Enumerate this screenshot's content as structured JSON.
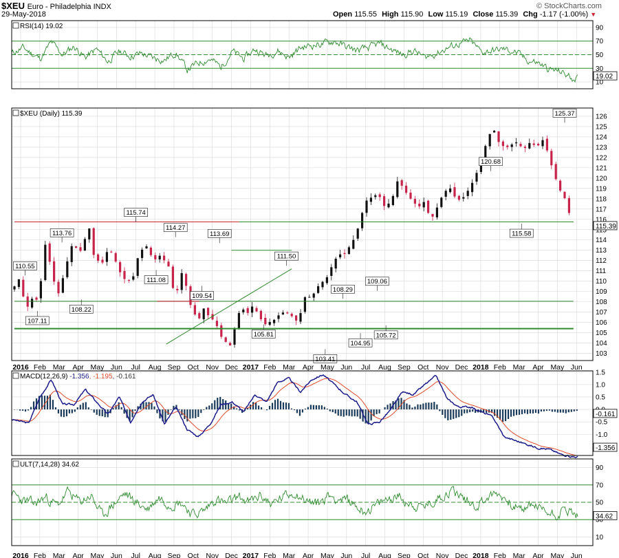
{
  "header": {
    "symbol": "$XEU",
    "name": "Euro - Philadelphia INDX",
    "date": "29-May-2018",
    "open_label": "Open",
    "open": "115.55",
    "high_label": "High",
    "high": "115.90",
    "low_label": "Low",
    "low": "115.19",
    "close_label": "Close",
    "close": "115.39",
    "chg_label": "Chg",
    "chg": "-1.17 (-1.00%)",
    "watermark": "© StockCharts.com"
  },
  "colors": {
    "frame": "#000000",
    "grid": "#d7d7d7",
    "green": "#2e8b2e",
    "red": "#cc2233",
    "macd": "#1a1a8a",
    "signal": "#e04a2a",
    "hist": "#1a3a5a",
    "up": "#111111",
    "down": "#c8234a"
  },
  "months": [
    "2016",
    "Feb",
    "Mar",
    "Apr",
    "May",
    "Jun",
    "Jul",
    "Aug",
    "Sep",
    "Oct",
    "Nov",
    "Dec",
    "2017",
    "Feb",
    "Mar",
    "Apr",
    "May",
    "Jun",
    "Jul",
    "Aug",
    "Sep",
    "Oct",
    "Nov",
    "Dec",
    "2018",
    "Feb",
    "Mar",
    "Apr",
    "May",
    "Jun"
  ],
  "chart_data": [
    {
      "id": "rsi",
      "type": "line",
      "label": "RSI(14) 19.02",
      "current": "19.02",
      "ylim": [
        0,
        100
      ],
      "ticks": [
        "90",
        "70",
        "50",
        "30",
        "10"
      ],
      "tick_values": [
        90,
        70,
        50,
        30,
        10
      ],
      "levels": [
        70,
        50,
        30
      ],
      "anchors": [
        [
          0,
          52
        ],
        [
          2,
          60
        ],
        [
          5,
          44
        ],
        [
          7,
          68
        ],
        [
          9,
          50
        ],
        [
          11,
          62
        ],
        [
          13,
          46
        ],
        [
          15,
          58
        ],
        [
          17,
          40
        ],
        [
          19,
          55
        ],
        [
          21,
          48
        ],
        [
          23,
          52
        ],
        [
          25,
          45
        ],
        [
          27,
          42
        ],
        [
          29,
          53
        ],
        [
          31,
          28
        ],
        [
          33,
          38
        ],
        [
          35,
          44
        ],
        [
          37,
          32
        ],
        [
          39,
          55
        ],
        [
          41,
          44
        ],
        [
          43,
          58
        ],
        [
          45,
          49
        ],
        [
          47,
          56
        ],
        [
          49,
          46
        ],
        [
          51,
          60
        ],
        [
          53,
          64
        ],
        [
          55,
          66
        ],
        [
          57,
          70
        ],
        [
          59,
          62
        ],
        [
          61,
          56
        ],
        [
          63,
          60
        ],
        [
          65,
          66
        ],
        [
          67,
          58
        ],
        [
          69,
          50
        ],
        [
          71,
          56
        ],
        [
          73,
          46
        ],
        [
          75,
          52
        ],
        [
          77,
          60
        ],
        [
          79,
          66
        ],
        [
          81,
          70
        ],
        [
          83,
          54
        ],
        [
          85,
          56
        ],
        [
          87,
          58
        ],
        [
          89,
          54
        ],
        [
          91,
          42
        ],
        [
          93,
          38
        ],
        [
          95,
          28
        ],
        [
          97,
          25
        ],
        [
          99,
          16
        ]
      ]
    },
    {
      "id": "price",
      "type": "candlestick",
      "label": "$XEU (Daily) 115.39",
      "current": "115.39",
      "ylim": [
        102.3,
        126.8
      ],
      "ticks": [
        "126",
        "125",
        "124",
        "123",
        "122",
        "121",
        "120",
        "119",
        "118",
        "117",
        "116",
        "115",
        "114",
        "113",
        "112",
        "111",
        "110",
        "109",
        "108",
        "107",
        "106",
        "105",
        "104",
        "103"
      ],
      "tick_values": [
        126,
        125,
        124,
        123,
        122,
        121,
        120,
        119,
        118,
        117,
        116,
        115,
        114,
        113,
        112,
        111,
        110,
        109,
        108,
        107,
        106,
        105,
        104,
        103
      ],
      "anchors": [
        [
          0,
          109.5
        ],
        [
          1.2,
          110.3
        ],
        [
          2.6,
          107.4
        ],
        [
          4,
          108.4
        ],
        [
          5.4,
          108.2
        ],
        [
          7,
          113.5
        ],
        [
          8.5,
          111
        ],
        [
          9.7,
          108.5
        ],
        [
          11.2,
          110.5
        ],
        [
          13,
          113.5
        ],
        [
          15.3,
          113
        ],
        [
          16.9,
          115.5
        ],
        [
          18,
          112.6
        ],
        [
          19.7,
          111.6
        ],
        [
          21.4,
          113.5
        ],
        [
          23.2,
          111.5
        ],
        [
          24.8,
          110.3
        ],
        [
          26.6,
          109.8
        ],
        [
          28.3,
          112.8
        ],
        [
          29.9,
          113.4
        ],
        [
          31.5,
          112.2
        ],
        [
          33.2,
          112.4
        ],
        [
          35,
          111.5
        ],
        [
          36.5,
          108.3
        ],
        [
          38.2,
          111.3
        ],
        [
          39.7,
          108
        ],
        [
          40.4,
          107.4
        ],
        [
          41.6,
          106.3
        ],
        [
          43,
          107.3
        ],
        [
          44.3,
          106.6
        ],
        [
          46,
          105.6
        ],
        [
          47.4,
          104.3
        ],
        [
          49,
          103.8
        ],
        [
          50.4,
          106
        ],
        [
          51.5,
          107.5
        ],
        [
          52.9,
          107
        ],
        [
          54.3,
          107.8
        ],
        [
          55.6,
          106.8
        ],
        [
          57,
          106
        ],
        [
          58.3,
          106.1
        ],
        [
          59.5,
          106.3
        ],
        [
          61.2,
          107
        ],
        [
          62.5,
          106.8
        ],
        [
          64.5,
          106
        ],
        [
          66,
          108.4
        ],
        [
          67.5,
          108.5
        ],
        [
          69.2,
          109.8
        ],
        [
          70.5,
          110
        ],
        [
          72,
          111.5
        ],
        [
          73.5,
          112.5
        ],
        [
          75,
          112.4
        ],
        [
          76.8,
          113.5
        ],
        [
          78.3,
          115.2
        ],
        [
          79.6,
          117.5
        ],
        [
          81,
          118.2
        ],
        [
          82.6,
          118.6
        ],
        [
          84.2,
          117.3
        ],
        [
          85.8,
          118
        ],
        [
          87.3,
          120
        ],
        [
          88.8,
          118.5
        ],
        [
          90.3,
          118
        ],
        [
          91.8,
          117.2
        ],
        [
          93.2,
          117.8
        ],
        [
          94.7,
          115.9
        ],
        [
          96.2,
          117.3
        ],
        [
          97.8,
          118.6
        ],
        [
          99.2,
          119
        ],
        [
          100.6,
          117.8
        ],
        [
          102.1,
          118
        ],
        [
          103.4,
          119.1
        ],
        [
          104.8,
          120.5
        ],
        [
          106.2,
          122
        ],
        [
          107.4,
          123.6
        ],
        [
          108.6,
          124.8
        ],
        [
          110,
          123.5
        ],
        [
          111.4,
          122.8
        ],
        [
          112.8,
          123.4
        ],
        [
          114.3,
          123.8
        ],
        [
          115.7,
          123
        ],
        [
          117.1,
          123.4
        ],
        [
          118.5,
          122.9
        ],
        [
          119.9,
          123.8
        ],
        [
          121.3,
          122.6
        ],
        [
          122.6,
          120.4
        ],
        [
          124,
          119
        ],
        [
          125.4,
          117.9
        ],
        [
          126.6,
          115.7
        ]
      ],
      "annotations": [
        {
          "idx": 1.2,
          "value": "110.55",
          "pos": "above"
        },
        {
          "idx": 2.6,
          "value": "107.11",
          "pos": "below"
        },
        {
          "idx": 5.4,
          "value": "113.76",
          "pos": "above"
        },
        {
          "idx": 7.6,
          "value": "108.22",
          "pos": "below"
        },
        {
          "idx": 13.8,
          "value": "115.74",
          "pos": "above"
        },
        {
          "idx": 16.1,
          "value": "111.08",
          "pos": "below"
        },
        {
          "idx": 18.3,
          "value": "114.27",
          "pos": "above"
        },
        {
          "idx": 21.3,
          "value": "109.54",
          "pos": "below"
        },
        {
          "idx": 23.3,
          "value": "113.69",
          "pos": "above"
        },
        {
          "idx": 28.3,
          "value": "105.81",
          "pos": "below"
        },
        {
          "idx": 30.9,
          "value": "111.50",
          "pos": "above"
        },
        {
          "idx": 35.3,
          "value": "103.41",
          "pos": "below"
        },
        {
          "idx": 37.3,
          "value": "108.29",
          "pos": "above"
        },
        {
          "idx": 39.3,
          "value": "104.95",
          "pos": "below"
        },
        {
          "idx": 41.2,
          "value": "109.06",
          "pos": "above"
        },
        {
          "idx": 42.2,
          "value": "105.72",
          "pos": "below"
        },
        {
          "idx": 54.1,
          "value": "120.68",
          "pos": "above"
        },
        {
          "idx": 57.6,
          "value": "115.58",
          "pos": "below"
        },
        {
          "idx": 62.5,
          "value": "125.37",
          "pos": "above"
        }
      ],
      "hlines": [
        {
          "value": 115.75,
          "from": 0,
          "to": 127,
          "color": "red"
        },
        {
          "value": 115.75,
          "from": 51,
          "to": 127,
          "color": "green"
        },
        {
          "value": 113.0,
          "from": 49.3,
          "to": 63,
          "color": "green"
        },
        {
          "value": 108.05,
          "from": 0,
          "to": 127,
          "color": "green"
        },
        {
          "value": 108.05,
          "from": 32.4,
          "to": 42,
          "color": "red"
        },
        {
          "value": 105.4,
          "from": 0,
          "to": 127,
          "color": "green",
          "width": 2
        }
      ],
      "trendline": [
        [
          34.5,
          103.9
        ],
        [
          63,
          111.2
        ]
      ]
    },
    {
      "id": "macd",
      "type": "line",
      "label_main": "MACD(12,26,9)",
      "label_macd": "-1.356",
      "label_signal": "-1.195",
      "label_hist": "-0.161",
      "current_macd": "-1.356",
      "current_hist": "-0.161",
      "ylim": [
        -1.85,
        1.55
      ],
      "ticks": [
        "1.5",
        "1.0",
        "0.5",
        "0.0",
        "-0.5",
        "-1.0"
      ],
      "tick_values": [
        1.5,
        1.0,
        0.5,
        0.0,
        -0.5,
        -1.0
      ],
      "macd_anchors": [
        [
          0,
          -0.4
        ],
        [
          3,
          -0.55
        ],
        [
          5,
          0.5
        ],
        [
          7,
          1.2
        ],
        [
          9,
          0.2
        ],
        [
          11,
          0.2
        ],
        [
          13,
          0.8
        ],
        [
          15,
          0.3
        ],
        [
          17,
          -0.2
        ],
        [
          19,
          0.5
        ],
        [
          21,
          -0.5
        ],
        [
          23,
          0.3
        ],
        [
          25,
          0.6
        ],
        [
          27,
          -0.6
        ],
        [
          29,
          0.1
        ],
        [
          31,
          -0.8
        ],
        [
          33,
          -1.1
        ],
        [
          35,
          -0.6
        ],
        [
          37,
          0.2
        ],
        [
          39,
          0.3
        ],
        [
          41,
          -0.1
        ],
        [
          43,
          0.6
        ],
        [
          45,
          0.3
        ],
        [
          47,
          1.1
        ],
        [
          49,
          1.25
        ],
        [
          51,
          0.7
        ],
        [
          53,
          1.2
        ],
        [
          55,
          1.4
        ],
        [
          57,
          1.0
        ],
        [
          59,
          0.6
        ],
        [
          61,
          0.3
        ],
        [
          63,
          -0.6
        ],
        [
          65,
          -0.5
        ],
        [
          67,
          0.0
        ],
        [
          69,
          0.7
        ],
        [
          71,
          0.6
        ],
        [
          73,
          1.0
        ],
        [
          75,
          1.35
        ],
        [
          77,
          0.4
        ],
        [
          79,
          0.1
        ],
        [
          81,
          0.1
        ],
        [
          83,
          -0.1
        ],
        [
          85,
          -0.3
        ],
        [
          87,
          -1.1
        ],
        [
          89,
          -1.25
        ],
        [
          91,
          -1.4
        ],
        [
          93,
          -1.55
        ],
        [
          95,
          -1.6
        ],
        [
          97,
          -1.8
        ],
        [
          99,
          -1.9
        ]
      ],
      "hist_levels": [
        "0.0"
      ]
    },
    {
      "id": "ult",
      "type": "line",
      "label": "ULT(7,14,28) 34.62",
      "current": "34.62",
      "ylim": [
        0,
        100
      ],
      "ticks": [
        "90",
        "70",
        "50",
        "30",
        "10"
      ],
      "tick_values": [
        90,
        70,
        50,
        30,
        10
      ],
      "levels": [
        70,
        50,
        30
      ],
      "anchors": [
        [
          0,
          60
        ],
        [
          2,
          52
        ],
        [
          4,
          48
        ],
        [
          6,
          56
        ],
        [
          8,
          46
        ],
        [
          10,
          62
        ],
        [
          12,
          50
        ],
        [
          14,
          58
        ],
        [
          16,
          34
        ],
        [
          18,
          48
        ],
        [
          20,
          60
        ],
        [
          22,
          50
        ],
        [
          24,
          42
        ],
        [
          26,
          56
        ],
        [
          28,
          48
        ],
        [
          30,
          50
        ],
        [
          32,
          36
        ],
        [
          34,
          40
        ],
        [
          36,
          54
        ],
        [
          38,
          48
        ],
        [
          40,
          56
        ],
        [
          42,
          50
        ],
        [
          44,
          58
        ],
        [
          46,
          48
        ],
        [
          48,
          56
        ],
        [
          50,
          62
        ],
        [
          52,
          52
        ],
        [
          54,
          48
        ],
        [
          56,
          58
        ],
        [
          58,
          54
        ],
        [
          60,
          50
        ],
        [
          62,
          40
        ],
        [
          64,
          44
        ],
        [
          66,
          52
        ],
        [
          68,
          58
        ],
        [
          70,
          50
        ],
        [
          72,
          44
        ],
        [
          74,
          48
        ],
        [
          76,
          58
        ],
        [
          78,
          64
        ],
        [
          80,
          54
        ],
        [
          82,
          46
        ],
        [
          84,
          56
        ],
        [
          86,
          60
        ],
        [
          88,
          50
        ],
        [
          90,
          40
        ],
        [
          92,
          48
        ],
        [
          94,
          40
        ],
        [
          96,
          36
        ],
        [
          98,
          42
        ],
        [
          100,
          34
        ]
      ]
    }
  ]
}
